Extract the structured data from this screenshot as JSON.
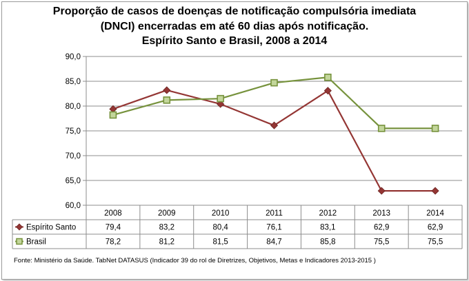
{
  "chart_data": {
    "type": "line",
    "title_lines": [
      "Proporção de casos de doenças de notificação compulsória imediata",
      "(DNCI) encerradas em até 60 dias após notificação.",
      "Espírito Santo e Brasil, 2008 a 2014"
    ],
    "categories": [
      "2008",
      "2009",
      "2010",
      "2011",
      "2012",
      "2013",
      "2014"
    ],
    "ylim": [
      60,
      90
    ],
    "y_ticks": [
      "90,0",
      "85,0",
      "80,0",
      "75,0",
      "70,0",
      "65,0",
      "60,0"
    ],
    "y_tick_values": [
      90,
      85,
      80,
      75,
      70,
      65,
      60
    ],
    "grid": true,
    "series": [
      {
        "name": "Espírito Santo",
        "color": "#943634",
        "marker": "diamond",
        "values": [
          79.4,
          83.2,
          80.4,
          76.1,
          83.1,
          62.9,
          62.9
        ],
        "labels": [
          "79,4",
          "83,2",
          "80,4",
          "76,1",
          "83,1",
          "62,9",
          "62,9"
        ]
      },
      {
        "name": "Brasil",
        "color": "#76923c",
        "marker": "square",
        "values": [
          78.2,
          81.2,
          81.5,
          84.7,
          85.8,
          75.5,
          75.5
        ],
        "labels": [
          "78,2",
          "81,2",
          "81,5",
          "84,7",
          "85,8",
          "75,5",
          "75,5"
        ]
      }
    ],
    "source": "Fonte: Ministério da Saúde. TabNet DATASUS (Indicador 39 do rol de Diretrizes, Objetivos, Metas e Indicadores 2013-2015 )"
  }
}
